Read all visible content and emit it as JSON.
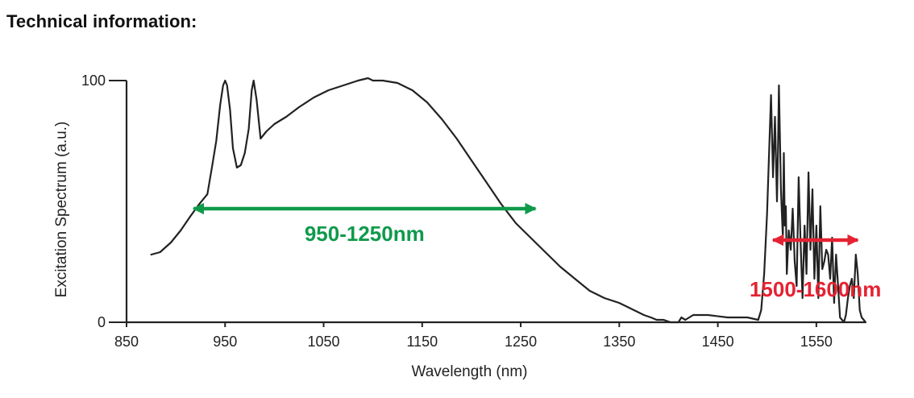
{
  "page": {
    "heading": "Technical information:"
  },
  "chart_data": {
    "type": "line",
    "title": "",
    "xlabel": "Wavelength (nm)",
    "ylabel": "Excitation Spectrum (a.u.)",
    "xlim": [
      850,
      1600
    ],
    "ylim": [
      0,
      100
    ],
    "x_ticks": [
      850,
      950,
      1050,
      1150,
      1250,
      1350,
      1450,
      1550
    ],
    "y_ticks": [
      0,
      100
    ],
    "grid": false,
    "legend": "none",
    "series_color": "#222222",
    "series": [
      {
        "x": [
          875,
          884,
          895,
          905,
          915,
          924,
          932,
          937,
          941,
          945,
          948,
          950,
          952,
          955,
          958,
          962,
          966,
          970,
          974,
          977,
          979,
          982,
          986,
          992,
          1000,
          1012,
          1025,
          1040,
          1055,
          1070,
          1085,
          1095,
          1100,
          1110,
          1125,
          1140,
          1155,
          1170,
          1185,
          1200,
          1215,
          1230,
          1245,
          1260,
          1275,
          1290,
          1305,
          1320,
          1335,
          1350,
          1365,
          1375,
          1382,
          1388,
          1395,
          1402,
          1410,
          1413,
          1417,
          1425,
          1440,
          1460,
          1480,
          1491,
          1494,
          1497,
          1500,
          1502,
          1504,
          1506,
          1508,
          1510,
          1511,
          1512,
          1514,
          1516,
          1517,
          1518,
          1519,
          1520,
          1522,
          1524,
          1526,
          1528,
          1530,
          1532,
          1534,
          1536,
          1538,
          1540,
          1542,
          1544,
          1546,
          1548,
          1550,
          1552,
          1554,
          1556,
          1558,
          1560,
          1562,
          1564,
          1566,
          1568,
          1570,
          1572,
          1574,
          1576,
          1578,
          1580,
          1582,
          1584,
          1586,
          1588,
          1590,
          1592,
          1594,
          1596,
          1598,
          1600
        ],
        "y": [
          28,
          29,
          33,
          38,
          44,
          49,
          53,
          65,
          75,
          90,
          98,
          100,
          98,
          88,
          72,
          64,
          65,
          70,
          80,
          96,
          100,
          92,
          76,
          79,
          82,
          85,
          89,
          93,
          96,
          98,
          100,
          101,
          100,
          100,
          99,
          96,
          91,
          84,
          76,
          67,
          58,
          49,
          41,
          35,
          29,
          23,
          18,
          13,
          10,
          8,
          5,
          3,
          2,
          1,
          1,
          0,
          0,
          2,
          1,
          3,
          3,
          2,
          2,
          1,
          5,
          20,
          45,
          70,
          94,
          60,
          85,
          50,
          70,
          98,
          55,
          35,
          70,
          40,
          48,
          20,
          38,
          30,
          47,
          25,
          15,
          60,
          33,
          10,
          40,
          20,
          62,
          30,
          55,
          18,
          40,
          10,
          48,
          22,
          25,
          30,
          28,
          18,
          35,
          8,
          28,
          15,
          2,
          1,
          0,
          3,
          10,
          15,
          18,
          10,
          28,
          20,
          5,
          2,
          1,
          0
        ]
      }
    ],
    "annotations": [
      {
        "text": "950-1250nm",
        "x_from": 918,
        "x_to": 1265,
        "y": 47,
        "color": "#0f9a4b"
      },
      {
        "text": "1500-1600nm",
        "x_from": 1506,
        "x_to": 1592,
        "y": 34,
        "color": "#e52232"
      }
    ]
  }
}
